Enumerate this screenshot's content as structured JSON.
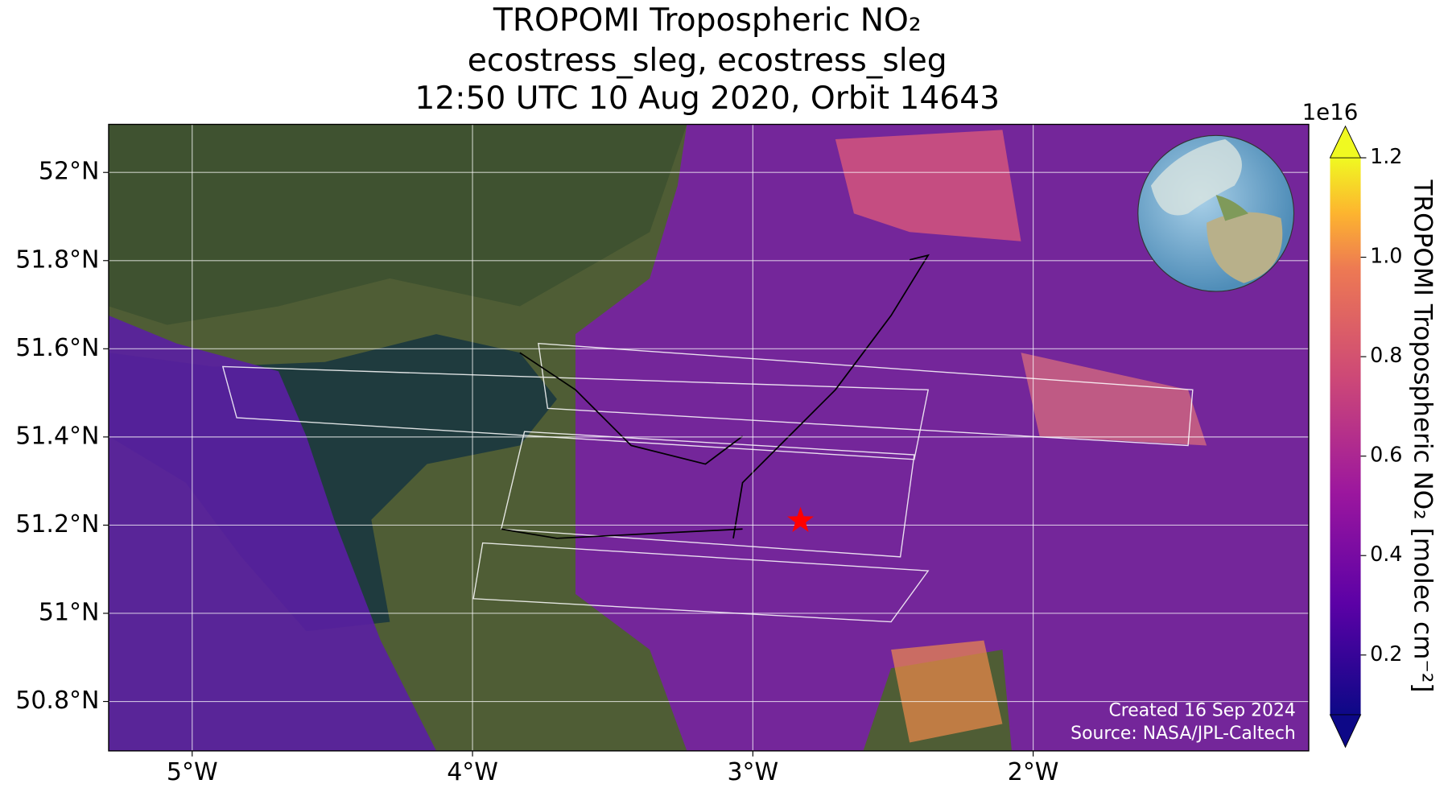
{
  "chart_data": {
    "type": "map",
    "title": [
      "TROPOMI Tropospheric NO₂",
      "ecostress_sleg, ecostress_sleg",
      "12:50 UTC 10 Aug 2020, Orbit 14643"
    ],
    "xlim": [
      -5.298,
      -1.017
    ],
    "ylim": [
      50.688,
      52.109
    ],
    "xticks": [
      {
        "value": -5,
        "label": "5°W"
      },
      {
        "value": -4,
        "label": "4°W"
      },
      {
        "value": -3,
        "label": "3°W"
      },
      {
        "value": -2,
        "label": "2°W"
      }
    ],
    "yticks": [
      {
        "value": 50.8,
        "label": "50.8°N"
      },
      {
        "value": 51,
        "label": "51°N"
      },
      {
        "value": 51.2,
        "label": "51.2°N"
      },
      {
        "value": 51.4,
        "label": "51.4°N"
      },
      {
        "value": 51.6,
        "label": "51.6°N"
      },
      {
        "value": 51.8,
        "label": "51.8°N"
      },
      {
        "value": 52,
        "label": "52°N"
      }
    ],
    "grid": true,
    "marker": {
      "lon": -2.83,
      "lat": 51.21,
      "color": "#ff0000"
    },
    "colorbar": {
      "label": "TROPOMI Tropospheric NO₂ [molec cm⁻²]",
      "exponent": "1e16",
      "clim": [
        0.08,
        1.2
      ],
      "ticks": [
        0.2,
        0.4,
        0.6,
        0.8,
        {
          "value": 1,
          "label": "1.0"
        },
        1.2
      ]
    },
    "annotations": [
      "Created 16 Sep 2024",
      "Source: NASA/JPL-Caltech"
    ]
  }
}
